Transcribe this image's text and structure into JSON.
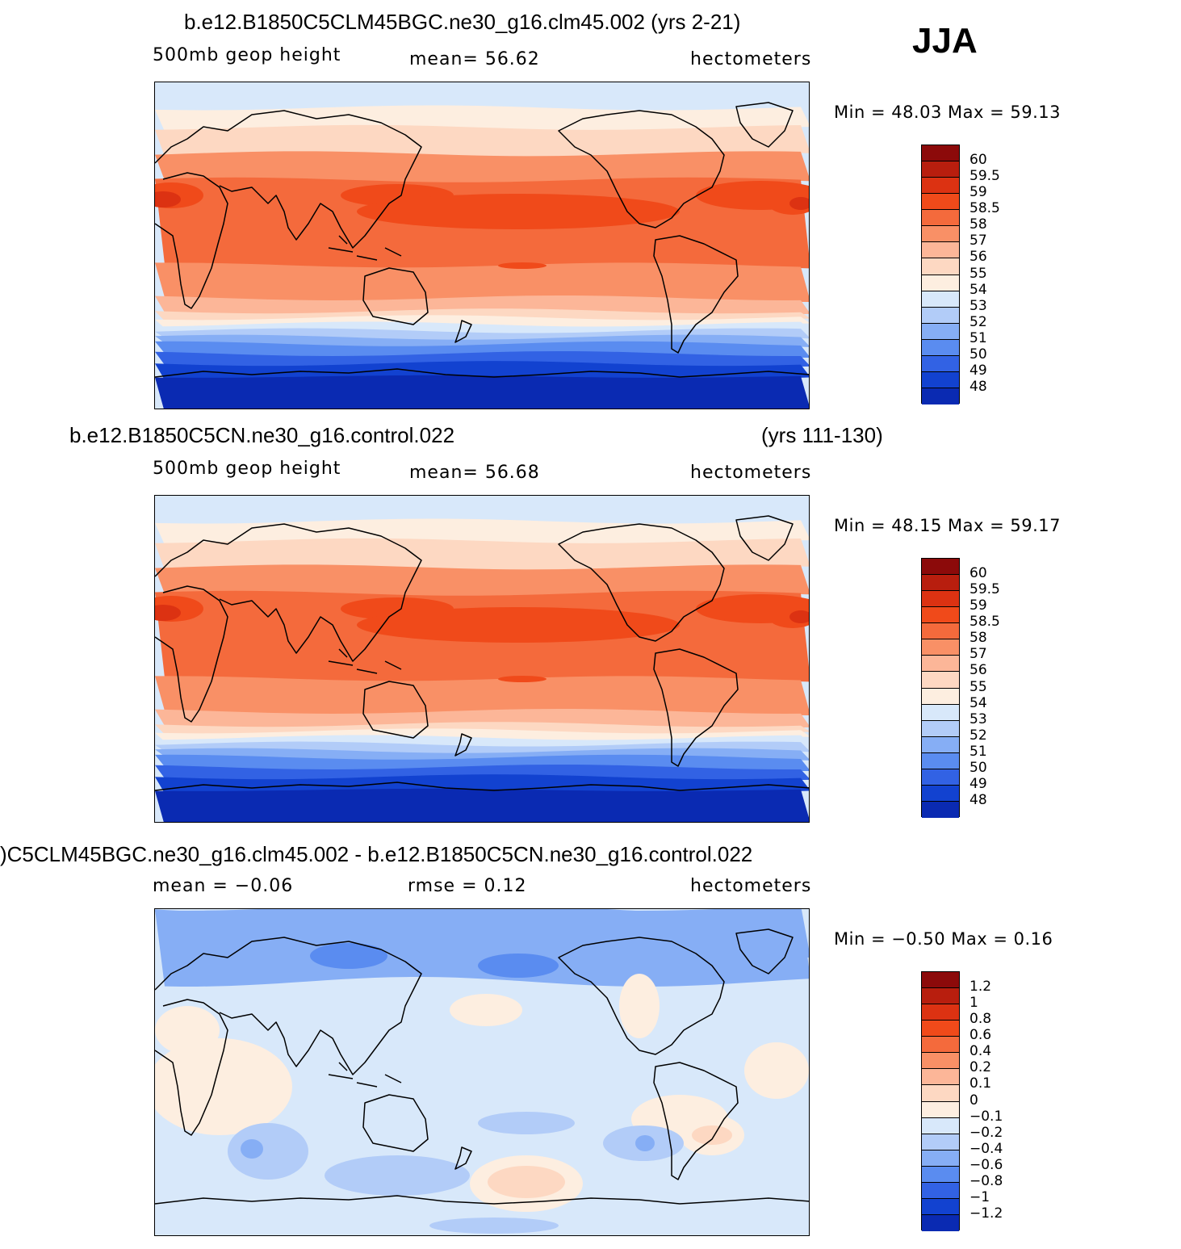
{
  "season": "JJA",
  "chart_data": [
    {
      "type": "heatmap",
      "title": "b.e12.B1850C5CLM45BGC.ne30_g16.clm45.002 (yrs 2-21)",
      "variable": "500mb  geop  height",
      "mean_text": "mean=   56.62",
      "units": "hectometers",
      "minmax_text": "Min =   48.03  Max =   59.13",
      "min": 48.03,
      "max": 59.13,
      "mean": 56.62,
      "levels": [
        "60",
        "59.5",
        "59",
        "58.5",
        "58",
        "57",
        "56",
        "55",
        "54",
        "53",
        "52",
        "51",
        "50",
        "49",
        "48"
      ],
      "colors": [
        "#8c0a0a",
        "#b81e0e",
        "#dc3212",
        "#f04a1a",
        "#f46a3c",
        "#f99066",
        "#fcb698",
        "#fdd8c2",
        "#fdeee0",
        "#d8e8fa",
        "#b2ccf8",
        "#86aef5",
        "#5a8cf0",
        "#3262e4",
        "#1242d0",
        "#0a2ab2",
        "#001090"
      ]
    },
    {
      "type": "heatmap",
      "title": "b.e12.B1850C5CN.ne30_g16.control.022",
      "title_years": "(yrs 111-130)",
      "variable": "500mb  geop  height",
      "mean_text": "mean=   56.68",
      "units": "hectometers",
      "minmax_text": "Min =   48.15  Max =   59.17",
      "min": 48.15,
      "max": 59.17,
      "mean": 56.68,
      "levels": [
        "60",
        "59.5",
        "59",
        "58.5",
        "58",
        "57",
        "56",
        "55",
        "54",
        "53",
        "52",
        "51",
        "50",
        "49",
        "48"
      ],
      "colors": [
        "#8c0a0a",
        "#b81e0e",
        "#dc3212",
        "#f04a1a",
        "#f46a3c",
        "#f99066",
        "#fcb698",
        "#fdd8c2",
        "#fdeee0",
        "#d8e8fa",
        "#b2ccf8",
        "#86aef5",
        "#5a8cf0",
        "#3262e4",
        "#1242d0",
        "#0a2ab2",
        "#001090"
      ]
    },
    {
      "type": "heatmap",
      "title": ")C5CLM45BGC.ne30_g16.clm45.002 - b.e12.B1850C5CN.ne30_g16.control.022",
      "mean_text": "mean =   −0.06",
      "rmse_text": "rmse =     0.12",
      "units": "hectometers",
      "minmax_text": "Min =   −0.50  Max =     0.16",
      "min": -0.5,
      "max": 0.16,
      "mean": -0.06,
      "rmse": 0.12,
      "levels": [
        "1.2",
        "1",
        "0.8",
        "0.6",
        "0.4",
        "0.2",
        "0.1",
        "0",
        "−0.1",
        "−0.2",
        "−0.4",
        "−0.6",
        "−0.8",
        "−1",
        "−1.2"
      ],
      "colors": [
        "#8c0a0a",
        "#b81e0e",
        "#dc3212",
        "#f04a1a",
        "#f46a3c",
        "#f99066",
        "#fcb698",
        "#fdd8c2",
        "#fdeee0",
        "#d8e8fa",
        "#b2ccf8",
        "#86aef5",
        "#5a8cf0",
        "#3262e4",
        "#1242d0",
        "#0a2ab2",
        "#001090"
      ]
    }
  ]
}
